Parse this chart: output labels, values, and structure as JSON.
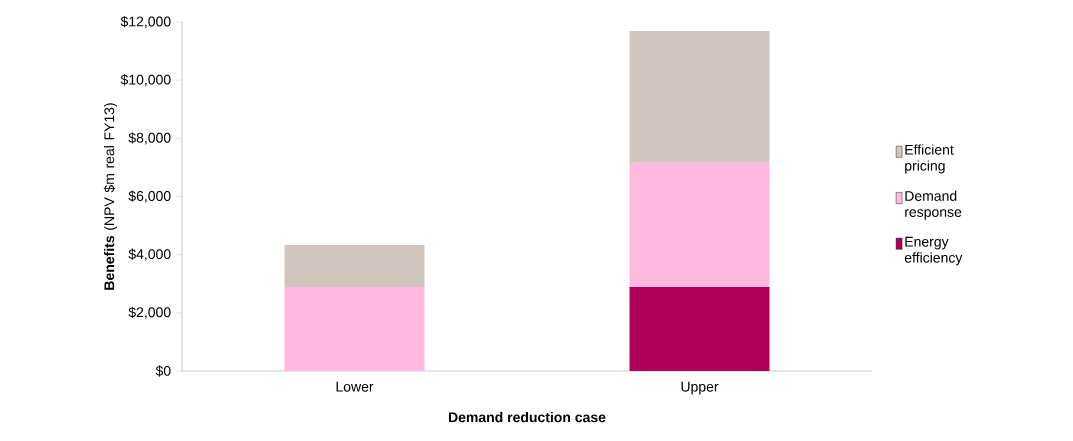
{
  "chart_data": {
    "type": "bar",
    "stacked": true,
    "xlabel": "Demand reduction case",
    "ylabel": "**Benefits** (NPV $m real FY13)",
    "categories": [
      "Lower",
      "Upper"
    ],
    "series": [
      {
        "name": "Energy efficiency",
        "color": "#b0005a",
        "values": [
          0,
          2890
        ]
      },
      {
        "name": "Demand response",
        "color": "#ffb8de",
        "values": [
          2890,
          4270
        ]
      },
      {
        "name": "Efficient pricing",
        "color": "#d0c6bd",
        "values": [
          1440,
          4530
        ]
      }
    ],
    "ylim": [
      0,
      12000
    ],
    "yticks": [
      {
        "value": 0,
        "label": "$0"
      },
      {
        "value": 2000,
        "label": "$2,000"
      },
      {
        "value": 4000,
        "label": "$4,000"
      },
      {
        "value": 6000,
        "label": "$6,000"
      },
      {
        "value": 8000,
        "label": "$8,000"
      },
      {
        "value": 10000,
        "label": "$10,000"
      },
      {
        "value": 12000,
        "label": "$12,000"
      }
    ],
    "legend": "right"
  }
}
